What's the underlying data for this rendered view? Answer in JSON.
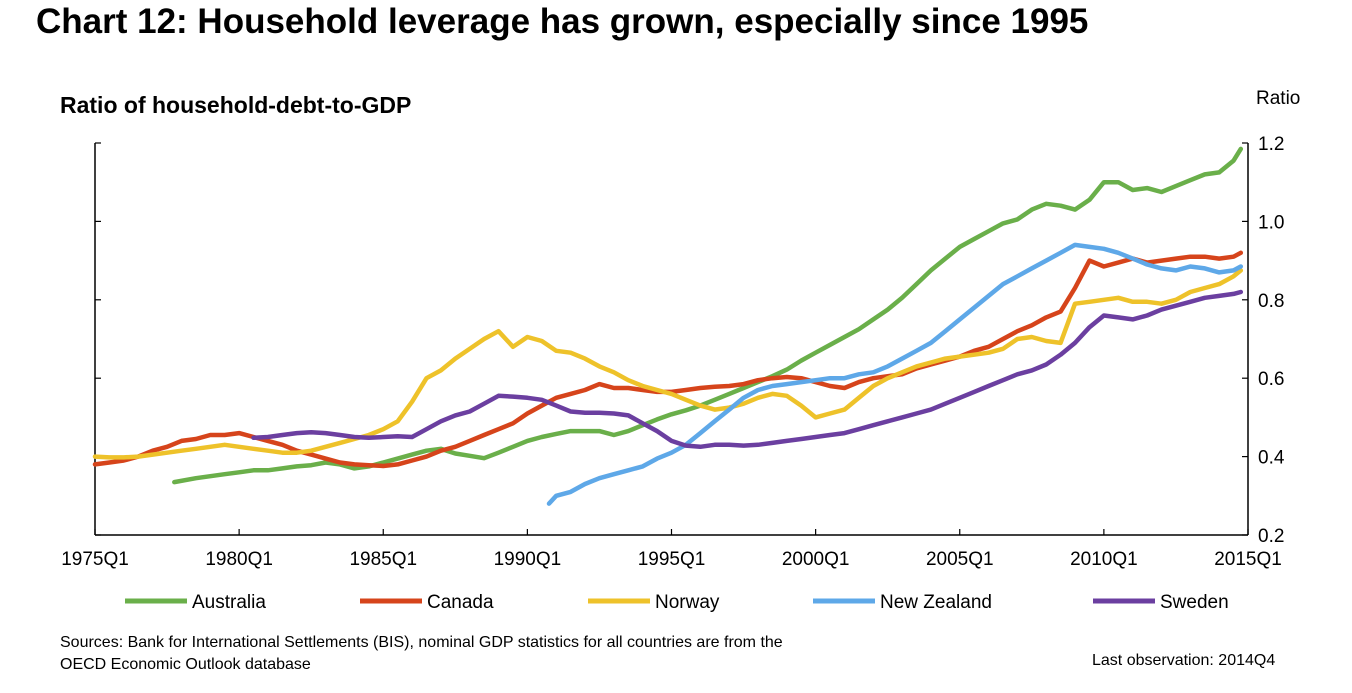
{
  "header": {
    "title": "Chart 12: Household leverage has grown, especially since 1995",
    "subtitle": "Ratio of household-debt-to-GDP",
    "unit_label": "Ratio"
  },
  "footer": {
    "sources_line1": "Sources: Bank for International Settlements (BIS), nominal GDP statistics for all countries are from the",
    "sources_line2": "OECD Economic Outlook database",
    "last_observation": "Last observation: 2014Q4"
  },
  "chart_data": {
    "type": "line",
    "title": "Chart 12: Household leverage has grown, especially since 1995",
    "subtitle": "Ratio of household-debt-to-GDP",
    "ylabel": "Ratio",
    "xlabel": "",
    "xlim": [
      1975.0,
      2015.0
    ],
    "ylim": [
      0.2,
      1.2
    ],
    "x_ticks": [
      1975,
      1980,
      1985,
      1990,
      1995,
      2000,
      2005,
      2010,
      2015
    ],
    "x_tick_labels": [
      "1975Q1",
      "1980Q1",
      "1985Q1",
      "1990Q1",
      "1995Q1",
      "2000Q1",
      "2005Q1",
      "2010Q1",
      "2015Q1"
    ],
    "y_ticks": [
      0.2,
      0.4,
      0.6,
      0.8,
      1.0,
      1.2
    ],
    "y_tick_labels": [
      "0.2",
      "0.4",
      "0.6",
      "0.8",
      "1.0",
      "1.2"
    ],
    "y_axis_side": "right",
    "grid": false,
    "legend_position": "bottom",
    "series": [
      {
        "name": "Australia",
        "color": "#6AAF4A",
        "x": [
          1977.75,
          1978.5,
          1979.0,
          1979.5,
          1980.0,
          1980.5,
          1981.0,
          1981.5,
          1982.0,
          1982.5,
          1983.0,
          1983.5,
          1984.0,
          1984.5,
          1985.0,
          1985.5,
          1986.0,
          1986.5,
          1987.0,
          1987.5,
          1988.0,
          1988.5,
          1989.0,
          1989.5,
          1990.0,
          1990.5,
          1991.0,
          1991.5,
          1992.0,
          1992.5,
          1993.0,
          1993.5,
          1994.0,
          1994.5,
          1995.0,
          1995.5,
          1996.0,
          1996.5,
          1997.0,
          1997.5,
          1998.0,
          1998.5,
          1999.0,
          1999.5,
          2000.0,
          2000.5,
          2001.0,
          2001.5,
          2002.0,
          2002.5,
          2003.0,
          2003.5,
          2004.0,
          2004.5,
          2005.0,
          2005.5,
          2006.0,
          2006.5,
          2007.0,
          2007.5,
          2008.0,
          2008.5,
          2009.0,
          2009.5,
          2010.0,
          2010.5,
          2011.0,
          2011.5,
          2012.0,
          2012.5,
          2013.0,
          2013.5,
          2014.0,
          2014.5,
          2014.75
        ],
        "values": [
          0.335,
          0.345,
          0.35,
          0.355,
          0.36,
          0.365,
          0.365,
          0.37,
          0.375,
          0.378,
          0.385,
          0.38,
          0.37,
          0.375,
          0.385,
          0.395,
          0.405,
          0.415,
          0.42,
          0.408,
          0.402,
          0.396,
          0.41,
          0.425,
          0.44,
          0.45,
          0.458,
          0.465,
          0.465,
          0.465,
          0.455,
          0.465,
          0.48,
          0.495,
          0.508,
          0.518,
          0.53,
          0.545,
          0.56,
          0.575,
          0.59,
          0.605,
          0.622,
          0.645,
          0.665,
          0.685,
          0.705,
          0.725,
          0.75,
          0.775,
          0.805,
          0.84,
          0.875,
          0.905,
          0.935,
          0.955,
          0.975,
          0.995,
          1.005,
          1.03,
          1.045,
          1.04,
          1.03,
          1.055,
          1.1,
          1.1,
          1.08,
          1.085,
          1.075,
          1.09,
          1.105,
          1.12,
          1.125,
          1.155,
          1.185
        ]
      },
      {
        "name": "Canada",
        "color": "#D6441B",
        "x": [
          1975.0,
          1975.5,
          1976.0,
          1976.5,
          1977.0,
          1977.5,
          1978.0,
          1978.5,
          1979.0,
          1979.5,
          1980.0,
          1980.5,
          1981.0,
          1981.5,
          1982.0,
          1982.5,
          1983.0,
          1983.5,
          1984.0,
          1984.5,
          1985.0,
          1985.5,
          1986.0,
          1986.5,
          1987.0,
          1987.5,
          1988.0,
          1988.5,
          1989.0,
          1989.5,
          1990.0,
          1990.5,
          1991.0,
          1991.5,
          1992.0,
          1992.5,
          1993.0,
          1993.5,
          1994.0,
          1994.5,
          1995.0,
          1995.5,
          1996.0,
          1996.5,
          1997.0,
          1997.5,
          1998.0,
          1998.5,
          1999.0,
          1999.5,
          2000.0,
          2000.5,
          2001.0,
          2001.5,
          2002.0,
          2002.5,
          2003.0,
          2003.5,
          2004.0,
          2004.5,
          2005.0,
          2005.5,
          2006.0,
          2006.5,
          2007.0,
          2007.5,
          2008.0,
          2008.5,
          2009.0,
          2009.5,
          2010.0,
          2010.5,
          2011.0,
          2011.5,
          2012.0,
          2012.5,
          2013.0,
          2013.5,
          2014.0,
          2014.5,
          2014.75
        ],
        "values": [
          0.38,
          0.385,
          0.39,
          0.4,
          0.415,
          0.425,
          0.44,
          0.445,
          0.455,
          0.455,
          0.46,
          0.45,
          0.44,
          0.43,
          0.415,
          0.405,
          0.395,
          0.385,
          0.38,
          0.378,
          0.376,
          0.38,
          0.39,
          0.4,
          0.415,
          0.425,
          0.44,
          0.455,
          0.47,
          0.485,
          0.51,
          0.53,
          0.55,
          0.56,
          0.57,
          0.585,
          0.575,
          0.575,
          0.57,
          0.565,
          0.565,
          0.57,
          0.575,
          0.578,
          0.58,
          0.585,
          0.595,
          0.6,
          0.603,
          0.6,
          0.59,
          0.58,
          0.575,
          0.59,
          0.6,
          0.605,
          0.61,
          0.625,
          0.635,
          0.645,
          0.655,
          0.67,
          0.68,
          0.7,
          0.72,
          0.735,
          0.755,
          0.77,
          0.83,
          0.9,
          0.885,
          0.895,
          0.905,
          0.895,
          0.9,
          0.905,
          0.91,
          0.91,
          0.905,
          0.91,
          0.92
        ]
      },
      {
        "name": "Norway",
        "color": "#EEC22A",
        "x": [
          1975.0,
          1975.5,
          1976.0,
          1976.5,
          1977.0,
          1977.5,
          1978.0,
          1978.5,
          1979.0,
          1979.5,
          1980.0,
          1980.5,
          1981.0,
          1981.5,
          1982.0,
          1982.5,
          1983.0,
          1983.5,
          1984.0,
          1984.5,
          1985.0,
          1985.5,
          1986.0,
          1986.5,
          1987.0,
          1987.5,
          1988.0,
          1988.5,
          1989.0,
          1989.5,
          1990.0,
          1990.5,
          1991.0,
          1991.5,
          1992.0,
          1992.5,
          1993.0,
          1993.5,
          1994.0,
          1994.5,
          1995.0,
          1995.5,
          1996.0,
          1996.5,
          1997.0,
          1997.5,
          1998.0,
          1998.5,
          1999.0,
          1999.5,
          2000.0,
          2000.5,
          2001.0,
          2001.5,
          2002.0,
          2002.5,
          2003.0,
          2003.5,
          2004.0,
          2004.5,
          2005.0,
          2005.5,
          2006.0,
          2006.5,
          2007.0,
          2007.5,
          2008.0,
          2008.5,
          2009.0,
          2009.5,
          2010.0,
          2010.5,
          2011.0,
          2011.5,
          2012.0,
          2012.5,
          2013.0,
          2013.5,
          2014.0,
          2014.5,
          2014.75
        ],
        "values": [
          0.4,
          0.398,
          0.398,
          0.4,
          0.405,
          0.41,
          0.415,
          0.42,
          0.425,
          0.43,
          0.425,
          0.42,
          0.415,
          0.41,
          0.41,
          0.415,
          0.425,
          0.435,
          0.445,
          0.455,
          0.47,
          0.49,
          0.54,
          0.6,
          0.62,
          0.65,
          0.675,
          0.7,
          0.72,
          0.68,
          0.705,
          0.695,
          0.67,
          0.665,
          0.65,
          0.63,
          0.615,
          0.595,
          0.58,
          0.57,
          0.56,
          0.545,
          0.53,
          0.52,
          0.525,
          0.535,
          0.55,
          0.56,
          0.555,
          0.53,
          0.5,
          0.51,
          0.52,
          0.55,
          0.58,
          0.6,
          0.615,
          0.63,
          0.64,
          0.65,
          0.655,
          0.66,
          0.665,
          0.675,
          0.7,
          0.705,
          0.695,
          0.69,
          0.79,
          0.795,
          0.8,
          0.805,
          0.795,
          0.795,
          0.79,
          0.8,
          0.82,
          0.83,
          0.84,
          0.86,
          0.875
        ]
      },
      {
        "name": "New Zealand",
        "color": "#5EA8E8",
        "x": [
          1990.75,
          1991.0,
          1991.5,
          1992.0,
          1992.5,
          1993.0,
          1993.5,
          1994.0,
          1994.5,
          1995.0,
          1995.5,
          1996.0,
          1996.5,
          1997.0,
          1997.5,
          1998.0,
          1998.5,
          1999.0,
          1999.5,
          2000.0,
          2000.5,
          2001.0,
          2001.5,
          2002.0,
          2002.5,
          2003.0,
          2003.5,
          2004.0,
          2004.5,
          2005.0,
          2005.5,
          2006.0,
          2006.5,
          2007.0,
          2007.5,
          2008.0,
          2008.5,
          2009.0,
          2009.5,
          2010.0,
          2010.5,
          2011.0,
          2011.5,
          2012.0,
          2012.5,
          2013.0,
          2013.5,
          2014.0,
          2014.5,
          2014.75
        ],
        "values": [
          0.28,
          0.3,
          0.31,
          0.33,
          0.345,
          0.355,
          0.365,
          0.375,
          0.395,
          0.41,
          0.43,
          0.46,
          0.49,
          0.52,
          0.55,
          0.57,
          0.58,
          0.585,
          0.59,
          0.595,
          0.6,
          0.6,
          0.61,
          0.615,
          0.63,
          0.65,
          0.67,
          0.69,
          0.72,
          0.75,
          0.78,
          0.81,
          0.84,
          0.86,
          0.88,
          0.9,
          0.92,
          0.94,
          0.935,
          0.93,
          0.92,
          0.905,
          0.89,
          0.88,
          0.875,
          0.885,
          0.88,
          0.87,
          0.875,
          0.885
        ]
      },
      {
        "name": "Sweden",
        "color": "#6B3FA0",
        "x": [
          1980.5,
          1981.0,
          1981.5,
          1982.0,
          1982.5,
          1983.0,
          1983.5,
          1984.0,
          1984.5,
          1985.0,
          1985.5,
          1986.0,
          1986.5,
          1987.0,
          1987.5,
          1988.0,
          1988.5,
          1989.0,
          1989.5,
          1990.0,
          1990.5,
          1991.0,
          1991.5,
          1992.0,
          1992.5,
          1993.0,
          1993.5,
          1994.0,
          1994.5,
          1995.0,
          1995.5,
          1996.0,
          1996.5,
          1997.0,
          1997.5,
          1998.0,
          1998.5,
          1999.0,
          1999.5,
          2000.0,
          2000.5,
          2001.0,
          2001.5,
          2002.0,
          2002.5,
          2003.0,
          2003.5,
          2004.0,
          2004.5,
          2005.0,
          2005.5,
          2006.0,
          2006.5,
          2007.0,
          2007.5,
          2008.0,
          2008.5,
          2009.0,
          2009.5,
          2010.0,
          2010.5,
          2011.0,
          2011.5,
          2012.0,
          2012.5,
          2013.0,
          2013.5,
          2014.0,
          2014.5,
          2014.75
        ],
        "values": [
          0.448,
          0.45,
          0.455,
          0.46,
          0.462,
          0.46,
          0.455,
          0.45,
          0.448,
          0.45,
          0.452,
          0.45,
          0.47,
          0.49,
          0.505,
          0.515,
          0.535,
          0.555,
          0.553,
          0.55,
          0.545,
          0.53,
          0.515,
          0.512,
          0.512,
          0.51,
          0.505,
          0.485,
          0.465,
          0.44,
          0.428,
          0.425,
          0.43,
          0.43,
          0.428,
          0.43,
          0.435,
          0.44,
          0.445,
          0.45,
          0.455,
          0.46,
          0.47,
          0.48,
          0.49,
          0.5,
          0.51,
          0.52,
          0.535,
          0.55,
          0.565,
          0.58,
          0.595,
          0.61,
          0.62,
          0.635,
          0.66,
          0.69,
          0.73,
          0.76,
          0.755,
          0.75,
          0.76,
          0.775,
          0.785,
          0.795,
          0.805,
          0.81,
          0.815,
          0.82
        ]
      }
    ]
  }
}
